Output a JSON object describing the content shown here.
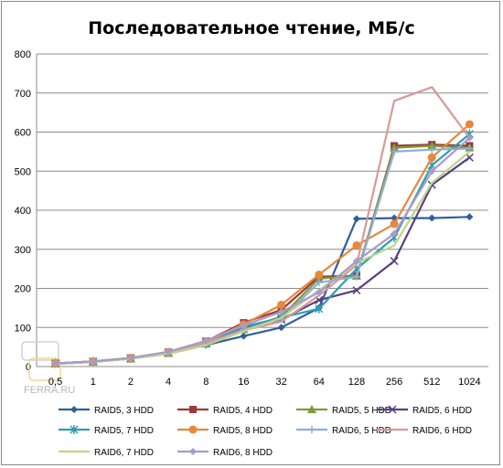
{
  "chart_data": {
    "type": "line",
    "title": "Последовательное чтение, МБ/с",
    "xlabel": "",
    "ylabel": "",
    "categories": [
      "0,5",
      "1",
      "2",
      "4",
      "8",
      "16",
      "32",
      "64",
      "128",
      "256",
      "512",
      "1024"
    ],
    "ylim": [
      0,
      800
    ],
    "yticks": [
      0,
      100,
      200,
      300,
      400,
      500,
      600,
      700,
      800
    ],
    "grid": true,
    "legend_position": "bottom",
    "watermark": "FERRA.RU",
    "series": [
      {
        "name": "RAID5, 3 HDD",
        "color": "#2e5f9e",
        "marker": "diamond",
        "values": [
          7,
          12,
          20,
          33,
          55,
          78,
          100,
          150,
          378,
          380,
          380,
          383
        ]
      },
      {
        "name": "RAID5, 4 HDD",
        "color": "#9b3a36",
        "marker": "square",
        "values": [
          8,
          13,
          22,
          37,
          65,
          112,
          145,
          230,
          232,
          565,
          568,
          565
        ]
      },
      {
        "name": "RAID5, 5 HDD",
        "color": "#7c9a3a",
        "marker": "triangle",
        "values": [
          7,
          12,
          20,
          34,
          58,
          95,
          128,
          225,
          232,
          560,
          565,
          560
        ]
      },
      {
        "name": "RAID5, 6 HDD",
        "color": "#5a3f80",
        "marker": "x",
        "values": [
          8,
          13,
          21,
          36,
          62,
          100,
          120,
          170,
          195,
          270,
          465,
          535
        ]
      },
      {
        "name": "RAID5, 7 HDD",
        "color": "#2f9db0",
        "marker": "star",
        "values": [
          8,
          13,
          21,
          36,
          60,
          102,
          125,
          148,
          250,
          330,
          515,
          595
        ]
      },
      {
        "name": "RAID5, 8 HDD",
        "color": "#e8883a",
        "marker": "circle",
        "values": [
          8,
          13,
          22,
          37,
          64,
          108,
          158,
          235,
          310,
          365,
          535,
          620
        ]
      },
      {
        "name": "RAID6, 5 HDD",
        "color": "#8eaed6",
        "marker": "plus",
        "values": [
          7,
          12,
          20,
          34,
          58,
          95,
          122,
          215,
          230,
          550,
          555,
          558
        ]
      },
      {
        "name": "RAID6, 6 HDD",
        "color": "#d69a98",
        "marker": "none",
        "values": [
          8,
          13,
          22,
          37,
          62,
          92,
          115,
          182,
          260,
          680,
          715,
          585
        ]
      },
      {
        "name": "RAID6, 7 HDD",
        "color": "#bdd58a",
        "marker": "none",
        "values": [
          7,
          12,
          20,
          33,
          55,
          90,
          125,
          195,
          265,
          310,
          470,
          550
        ]
      },
      {
        "name": "RAID6, 8 HDD",
        "color": "#a99ac9",
        "marker": "diamond",
        "values": [
          8,
          13,
          22,
          38,
          66,
          105,
          140,
          190,
          270,
          340,
          500,
          585
        ]
      }
    ]
  }
}
